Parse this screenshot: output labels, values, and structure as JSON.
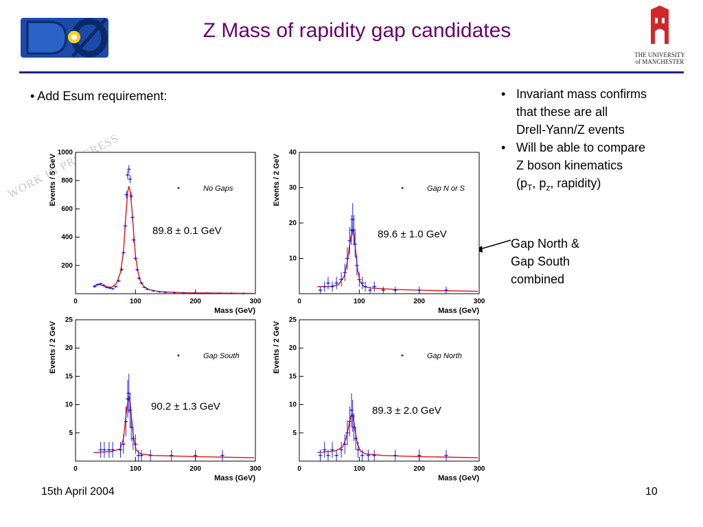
{
  "slide": {
    "title": "Z Mass of rapidity gap candidates",
    "bullet_left": "• Add Esum requirement:",
    "notes": [
      {
        "bullet": "•",
        "lines": [
          "Invariant mass confirms",
          "that these are all",
          "Drell-Yann/Z events"
        ]
      },
      {
        "bullet": "•",
        "lines": [
          "Will be able to compare",
          "Z boson kinematics"
        ],
        "extra": {
          "open": "(p",
          "sub1": "T",
          "mid": ", p",
          "sub2": "z",
          "close": ", rapidity)"
        }
      }
    ],
    "side_label": [
      "Gap North &",
      "Gap South",
      "combined"
    ],
    "watermark": "WORK IN PROGRESS",
    "footer_date": "15th April 2004",
    "footer_page": "10",
    "logo_right": [
      "THE UNIVERSITY",
      "of MANCHESTER"
    ],
    "colors": {
      "title": "#66006e",
      "rule": "#1f1f8f",
      "data": "#2020e0",
      "fit": "#e01010",
      "d0_logo": "#1c4aa8"
    }
  },
  "chart_data": [
    {
      "type": "scatter",
      "legend": "No Gaps",
      "xlabel": "Mass  (GeV)",
      "ylabel": "Events / 5 GeV",
      "xlim": [
        0,
        300
      ],
      "ylim": [
        0,
        1000
      ],
      "xticks": [
        0,
        100,
        200,
        300
      ],
      "yticks": [
        200,
        400,
        600,
        800,
        1000
      ],
      "fit_label": "89.8 ± 0.1 GeV",
      "points": [
        [
          32,
          50
        ],
        [
          37,
          65
        ],
        [
          42,
          70
        ],
        [
          47,
          60
        ],
        [
          52,
          45
        ],
        [
          57,
          40
        ],
        [
          62,
          35
        ],
        [
          67,
          50
        ],
        [
          72,
          90
        ],
        [
          77,
          170
        ],
        [
          80,
          290
        ],
        [
          83,
          480
        ],
        [
          85,
          700
        ],
        [
          87,
          840
        ],
        [
          89,
          880
        ],
        [
          91,
          810
        ],
        [
          93,
          690
        ],
        [
          95,
          540
        ],
        [
          97,
          380
        ],
        [
          100,
          250
        ],
        [
          103,
          170
        ],
        [
          106,
          110
        ],
        [
          110,
          75
        ],
        [
          115,
          45
        ],
        [
          120,
          32
        ],
        [
          130,
          20
        ],
        [
          140,
          14
        ],
        [
          150,
          10
        ],
        [
          165,
          8
        ],
        [
          180,
          6
        ],
        [
          200,
          5
        ],
        [
          220,
          4
        ],
        [
          240,
          3
        ],
        [
          260,
          3
        ],
        [
          280,
          2
        ]
      ],
      "fit": [
        [
          30,
          55
        ],
        [
          40,
          65
        ],
        [
          50,
          50
        ],
        [
          60,
          45
        ],
        [
          68,
          70
        ],
        [
          75,
          150
        ],
        [
          80,
          300
        ],
        [
          84,
          560
        ],
        [
          87,
          720
        ],
        [
          89,
          760
        ],
        [
          91,
          730
        ],
        [
          94,
          600
        ],
        [
          97,
          430
        ],
        [
          100,
          270
        ],
        [
          104,
          160
        ],
        [
          108,
          90
        ],
        [
          114,
          50
        ],
        [
          122,
          30
        ],
        [
          135,
          18
        ],
        [
          150,
          12
        ],
        [
          175,
          8
        ],
        [
          200,
          6
        ],
        [
          250,
          4
        ],
        [
          298,
          2
        ]
      ]
    },
    {
      "type": "scatter",
      "legend": "Gap N or S",
      "xlabel": "Mass  (GeV)",
      "ylabel": "Events / 2 GeV",
      "xlim": [
        0,
        300
      ],
      "ylim": [
        0,
        40
      ],
      "xticks": [
        0,
        100,
        200,
        300
      ],
      "yticks": [
        10,
        20,
        30,
        40
      ],
      "fit_label": "89.6 ± 1.0 GeV",
      "points": [
        [
          35,
          1
        ],
        [
          42,
          2
        ],
        [
          48,
          3
        ],
        [
          55,
          2
        ],
        [
          62,
          3
        ],
        [
          70,
          4
        ],
        [
          76,
          6
        ],
        [
          80,
          10
        ],
        [
          84,
          15
        ],
        [
          87,
          18
        ],
        [
          89,
          21
        ],
        [
          91,
          18
        ],
        [
          93,
          14
        ],
        [
          96,
          8
        ],
        [
          100,
          4
        ],
        [
          105,
          3
        ],
        [
          110,
          2
        ],
        [
          118,
          1
        ],
        [
          125,
          2
        ],
        [
          140,
          1
        ],
        [
          160,
          1
        ],
        [
          200,
          1
        ],
        [
          245,
          1
        ]
      ],
      "fit": [
        [
          30,
          2
        ],
        [
          50,
          2
        ],
        [
          65,
          2.5
        ],
        [
          75,
          5
        ],
        [
          80,
          9
        ],
        [
          84,
          14
        ],
        [
          87,
          17
        ],
        [
          89,
          18.5
        ],
        [
          91,
          17
        ],
        [
          94,
          12
        ],
        [
          97,
          7
        ],
        [
          101,
          3.5
        ],
        [
          108,
          2
        ],
        [
          120,
          1.6
        ],
        [
          160,
          1.2
        ],
        [
          220,
          0.9
        ],
        [
          298,
          0.7
        ]
      ]
    },
    {
      "type": "scatter",
      "legend": "Gap South",
      "xlabel": "Mass  (GeV)",
      "ylabel": "Events / 2 GeV",
      "xlim": [
        0,
        300
      ],
      "ylim": [
        0,
        25
      ],
      "xticks": [
        0,
        100,
        200,
        300
      ],
      "yticks": [
        5,
        10,
        15,
        20,
        25
      ],
      "fit_label": "90.2 ± 1.3 GeV",
      "points": [
        [
          42,
          2
        ],
        [
          48,
          2
        ],
        [
          56,
          2
        ],
        [
          62,
          2
        ],
        [
          75,
          2
        ],
        [
          80,
          3
        ],
        [
          84,
          7
        ],
        [
          87,
          11
        ],
        [
          89,
          12
        ],
        [
          91,
          9
        ],
        [
          93,
          6
        ],
        [
          96,
          4
        ],
        [
          100,
          3
        ],
        [
          105,
          1
        ],
        [
          110,
          1
        ],
        [
          125,
          1
        ],
        [
          160,
          1
        ],
        [
          200,
          1
        ],
        [
          245,
          1
        ]
      ],
      "fit": [
        [
          30,
          1.5
        ],
        [
          60,
          1.7
        ],
        [
          75,
          2.2
        ],
        [
          80,
          4
        ],
        [
          84,
          8
        ],
        [
          87,
          10.5
        ],
        [
          89,
          11.5
        ],
        [
          91,
          10.5
        ],
        [
          94,
          7
        ],
        [
          97,
          4
        ],
        [
          101,
          2
        ],
        [
          108,
          1.3
        ],
        [
          130,
          1
        ],
        [
          200,
          0.8
        ],
        [
          298,
          0.6
        ]
      ]
    },
    {
      "type": "scatter",
      "legend": "Gap North",
      "xlabel": "Mass  (GeV)",
      "ylabel": "Events / 2 GeV",
      "xlim": [
        0,
        300
      ],
      "ylim": [
        0,
        25
      ],
      "xticks": [
        0,
        100,
        200,
        300
      ],
      "yticks": [
        5,
        10,
        15,
        20,
        25
      ],
      "fit_label": "89.3 ± 2.0 GeV",
      "points": [
        [
          35,
          1
        ],
        [
          42,
          2
        ],
        [
          48,
          1
        ],
        [
          55,
          2
        ],
        [
          62,
          1
        ],
        [
          70,
          2
        ],
        [
          76,
          3
        ],
        [
          80,
          5
        ],
        [
          84,
          7
        ],
        [
          87,
          9
        ],
        [
          89,
          8
        ],
        [
          91,
          6
        ],
        [
          94,
          4
        ],
        [
          98,
          2
        ],
        [
          105,
          1
        ],
        [
          115,
          1
        ],
        [
          125,
          1
        ],
        [
          160,
          1
        ],
        [
          200,
          1
        ],
        [
          245,
          1
        ]
      ],
      "fit": [
        [
          30,
          1.5
        ],
        [
          60,
          1.8
        ],
        [
          72,
          2.5
        ],
        [
          78,
          4
        ],
        [
          83,
          6.5
        ],
        [
          86,
          8
        ],
        [
          88,
          8.3
        ],
        [
          90,
          7.8
        ],
        [
          93,
          5.5
        ],
        [
          97,
          3
        ],
        [
          102,
          1.8
        ],
        [
          110,
          1.3
        ],
        [
          140,
          1
        ],
        [
          200,
          0.8
        ],
        [
          298,
          0.6
        ]
      ]
    }
  ]
}
